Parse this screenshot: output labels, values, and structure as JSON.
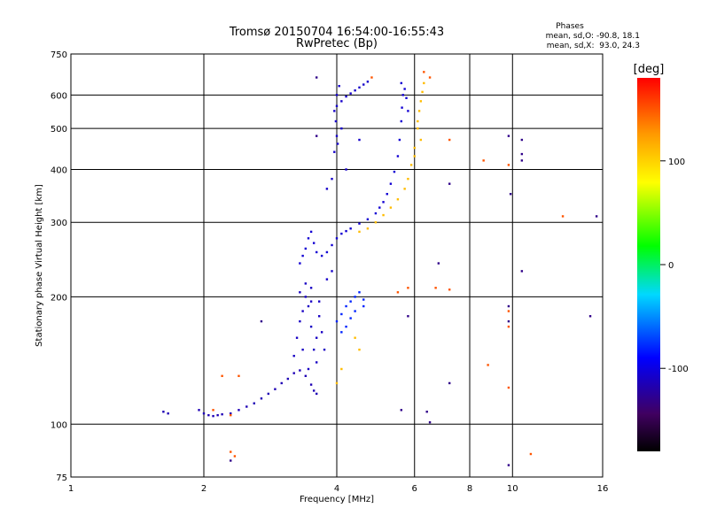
{
  "chart_data": {
    "type": "scatter",
    "title": "Tromsø 20150704 16:54:00-16:55:43",
    "subtitle": "RwPretec (Bp)",
    "xlabel": "Frequency [MHz]",
    "ylabel": "Stationary phase Virtual Height [km]",
    "x_scale": "log",
    "y_scale": "log",
    "xlim": [
      1,
      16
    ],
    "ylim": [
      75,
      750
    ],
    "x_ticks": [
      1,
      2,
      4,
      6,
      8,
      10,
      16
    ],
    "y_ticks": [
      75,
      100,
      200,
      300,
      400,
      500,
      600,
      750
    ],
    "x_gridlines": [
      2,
      4,
      6,
      8,
      10
    ],
    "y_gridlines": [
      100,
      200,
      300,
      400,
      500,
      600
    ],
    "grid": true,
    "phase_stats": {
      "title": "Phases",
      "line_o": "mean, sd,O: -90.8, 18.1",
      "line_x": "mean, sd,X:  93.0, 24.3"
    },
    "colorbar": {
      "label": "[deg]",
      "range": [
        -180,
        180
      ],
      "ticks": [
        100,
        0,
        -100
      ],
      "placement": "right"
    },
    "point_groups": [
      {
        "phase": -115,
        "points": [
          [
            1.62,
            107
          ],
          [
            1.66,
            106
          ],
          [
            1.95,
            108
          ],
          [
            2.0,
            106
          ],
          [
            2.05,
            105
          ],
          [
            2.1,
            104.5
          ],
          [
            2.15,
            105
          ],
          [
            2.2,
            105.5
          ],
          [
            2.3,
            106
          ],
          [
            2.4,
            108
          ],
          [
            2.5,
            110
          ],
          [
            2.6,
            112
          ],
          [
            2.7,
            115
          ],
          [
            2.8,
            118
          ],
          [
            2.9,
            121
          ],
          [
            3.0,
            125
          ],
          [
            3.1,
            128
          ],
          [
            3.2,
            132
          ],
          [
            3.3,
            134
          ],
          [
            3.4,
            130
          ],
          [
            3.5,
            124
          ],
          [
            3.55,
            120
          ],
          [
            3.6,
            118
          ]
        ]
      },
      {
        "phase": -110,
        "points": [
          [
            3.2,
            145
          ],
          [
            3.25,
            160
          ],
          [
            3.3,
            175
          ],
          [
            3.35,
            185
          ],
          [
            3.4,
            200
          ],
          [
            3.45,
            190
          ],
          [
            3.5,
            170
          ],
          [
            3.55,
            150
          ],
          [
            3.6,
            160
          ],
          [
            3.65,
            180
          ],
          [
            3.7,
            165
          ],
          [
            3.75,
            150
          ],
          [
            3.3,
            205
          ],
          [
            3.4,
            215
          ],
          [
            3.5,
            195
          ],
          [
            3.6,
            140
          ],
          [
            3.45,
            135
          ],
          [
            3.35,
            150
          ],
          [
            3.65,
            195
          ],
          [
            3.5,
            210
          ]
        ]
      },
      {
        "phase": -105,
        "points": [
          [
            3.3,
            240
          ],
          [
            3.35,
            250
          ],
          [
            3.4,
            260
          ],
          [
            3.45,
            275
          ],
          [
            3.5,
            285
          ],
          [
            3.55,
            268
          ],
          [
            3.6,
            255
          ],
          [
            3.7,
            250
          ],
          [
            3.8,
            255
          ],
          [
            3.9,
            265
          ],
          [
            4.0,
            275
          ],
          [
            4.1,
            282
          ],
          [
            4.2,
            286
          ],
          [
            4.3,
            290
          ],
          [
            4.5,
            298
          ],
          [
            4.7,
            305
          ],
          [
            4.9,
            315
          ],
          [
            5.0,
            325
          ],
          [
            5.1,
            335
          ],
          [
            5.2,
            350
          ],
          [
            5.3,
            370
          ],
          [
            5.4,
            395
          ],
          [
            5.5,
            430
          ],
          [
            5.55,
            470
          ],
          [
            5.6,
            520
          ],
          [
            5.62,
            560
          ],
          [
            5.65,
            600
          ],
          [
            5.6,
            640
          ],
          [
            5.7,
            620
          ],
          [
            5.75,
            590
          ],
          [
            5.8,
            550
          ]
        ]
      },
      {
        "phase": -108,
        "points": [
          [
            3.95,
            550
          ],
          [
            4.0,
            565
          ],
          [
            4.1,
            580
          ],
          [
            4.2,
            595
          ],
          [
            4.3,
            605
          ],
          [
            4.4,
            615
          ],
          [
            4.5,
            625
          ],
          [
            4.6,
            635
          ],
          [
            4.7,
            645
          ],
          [
            4.0,
            600
          ],
          [
            4.05,
            630
          ],
          [
            3.98,
            520
          ],
          [
            4.0,
            480
          ],
          [
            4.02,
            460
          ],
          [
            3.95,
            440
          ],
          [
            4.1,
            500
          ],
          [
            3.9,
            380
          ],
          [
            3.8,
            360
          ],
          [
            3.9,
            230
          ],
          [
            3.8,
            220
          ],
          [
            4.2,
            400
          ],
          [
            4.5,
            470
          ]
        ]
      },
      {
        "phase": -80,
        "points": [
          [
            4.0,
            175
          ],
          [
            4.1,
            182
          ],
          [
            4.2,
            190
          ],
          [
            4.3,
            195
          ],
          [
            4.4,
            200
          ],
          [
            4.5,
            205
          ],
          [
            4.6,
            197
          ],
          [
            4.4,
            185
          ],
          [
            4.2,
            170
          ],
          [
            4.1,
            165
          ],
          [
            4.3,
            178
          ],
          [
            4.6,
            190
          ]
        ]
      },
      {
        "phase": 110,
        "points": [
          [
            4.5,
            285
          ],
          [
            4.7,
            290
          ],
          [
            4.9,
            300
          ],
          [
            5.1,
            312
          ],
          [
            5.3,
            325
          ],
          [
            5.5,
            340
          ],
          [
            5.7,
            360
          ],
          [
            5.8,
            380
          ],
          [
            5.9,
            410
          ],
          [
            6.0,
            450
          ],
          [
            6.1,
            500
          ],
          [
            6.15,
            550
          ],
          [
            6.2,
            580
          ],
          [
            6.25,
            610
          ],
          [
            6.3,
            640
          ],
          [
            6.2,
            470
          ],
          [
            6.1,
            520
          ],
          [
            6.0,
            430
          ],
          [
            4.4,
            160
          ],
          [
            4.5,
            150
          ],
          [
            4.1,
            135
          ],
          [
            4.0,
            125
          ]
        ]
      },
      {
        "phase": 150,
        "points": [
          [
            2.1,
            108
          ],
          [
            2.3,
            105
          ],
          [
            2.2,
            130
          ],
          [
            2.4,
            130
          ],
          [
            4.8,
            660
          ],
          [
            6.3,
            680
          ],
          [
            6.5,
            660
          ],
          [
            7.2,
            470
          ],
          [
            8.6,
            420
          ],
          [
            9.8,
            410
          ],
          [
            5.5,
            205
          ],
          [
            5.8,
            210
          ],
          [
            6.7,
            210
          ],
          [
            7.2,
            208
          ],
          [
            9.8,
            170
          ],
          [
            9.8,
            185
          ],
          [
            13.0,
            310
          ],
          [
            8.8,
            138
          ],
          [
            9.8,
            122
          ],
          [
            11.0,
            85
          ],
          [
            2.3,
            86
          ],
          [
            2.35,
            84
          ]
        ]
      },
      {
        "phase": -130,
        "points": [
          [
            3.6,
            660
          ],
          [
            3.6,
            480
          ],
          [
            7.2,
            370
          ],
          [
            9.8,
            480
          ],
          [
            10.5,
            470
          ],
          [
            10.5,
            435
          ],
          [
            10.5,
            420
          ],
          [
            9.9,
            350
          ],
          [
            10.5,
            230
          ],
          [
            9.8,
            190
          ],
          [
            15.0,
            180
          ],
          [
            9.8,
            175
          ],
          [
            7.2,
            125
          ],
          [
            6.4,
            107
          ],
          [
            6.5,
            101
          ],
          [
            5.6,
            108
          ],
          [
            2.7,
            175
          ],
          [
            9.8,
            80
          ],
          [
            2.3,
            82
          ],
          [
            15.5,
            310
          ],
          [
            5.8,
            180
          ],
          [
            6.8,
            240
          ]
        ]
      }
    ]
  }
}
